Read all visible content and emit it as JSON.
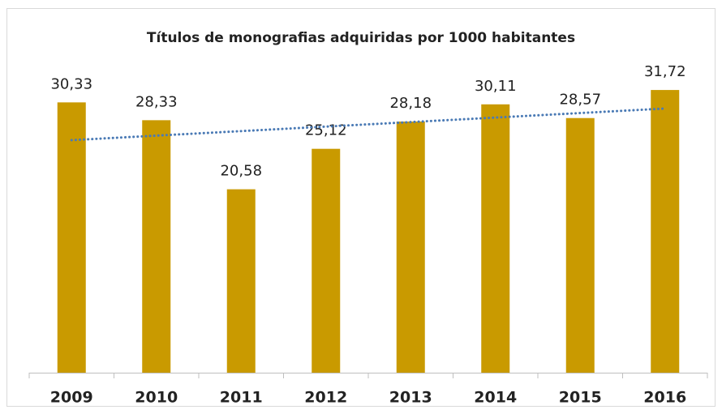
{
  "chart_data": {
    "type": "bar",
    "title": "Títulos de monografias adquiridas por 1000 habitantes",
    "categories": [
      "2009",
      "2010",
      "2011",
      "2012",
      "2013",
      "2014",
      "2015",
      "2016"
    ],
    "values": [
      30.33,
      28.33,
      20.58,
      25.12,
      28.18,
      30.11,
      28.57,
      31.72
    ],
    "value_labels": [
      "30,33",
      "28,33",
      "20,58",
      "25,12",
      "28,18",
      "30,11",
      "28,57",
      "31,72"
    ],
    "color": "#c99a00",
    "ylim": [
      0,
      35
    ],
    "trendline": {
      "type": "linear",
      "color": "#4a7ab5"
    }
  }
}
